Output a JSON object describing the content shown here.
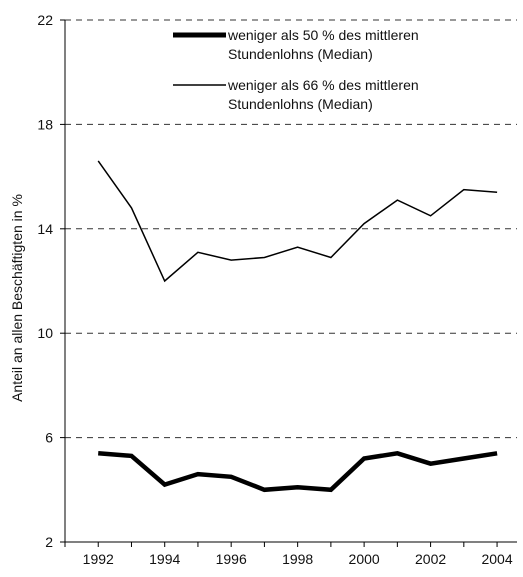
{
  "chart_data": {
    "type": "line",
    "ylabel": "Anteil an allen Beschäftigten in %",
    "xlabel": "",
    "x": [
      1992,
      1993,
      1994,
      1995,
      1996,
      1997,
      1998,
      1999,
      2000,
      2001,
      2002,
      2003,
      2004
    ],
    "xlim": [
      1991.0,
      2004.6
    ],
    "xticks": [
      "1992",
      "1994",
      "1996",
      "1998",
      "2000",
      "2002",
      "2004"
    ],
    "ylim": [
      2,
      22
    ],
    "yticks": [
      "2",
      "6",
      "10",
      "14",
      "18",
      "22"
    ],
    "grid": "horizontal dashed",
    "legend_position": "top-right",
    "series": [
      {
        "name": "weniger als 50 % des mittleren Stundenlohns (Median)",
        "legend_lines": [
          "weniger als 50 % des mittleren",
          "Stundenlohns (Median)"
        ],
        "style": "thick",
        "color": "#000000",
        "values": [
          5.4,
          5.3,
          4.2,
          4.6,
          4.5,
          4.0,
          4.1,
          4.0,
          5.2,
          5.4,
          5.0,
          5.2,
          5.4
        ]
      },
      {
        "name": "weniger als 66 % des mittleren Stundenlohns (Median)",
        "legend_lines": [
          "weniger als 66 % des mittleren",
          "Stundenlohns (Median)"
        ],
        "style": "thin",
        "color": "#000000",
        "values": [
          16.6,
          14.8,
          12.0,
          13.1,
          12.8,
          12.9,
          13.3,
          12.9,
          14.2,
          15.1,
          14.5,
          15.5,
          15.4
        ]
      }
    ]
  }
}
